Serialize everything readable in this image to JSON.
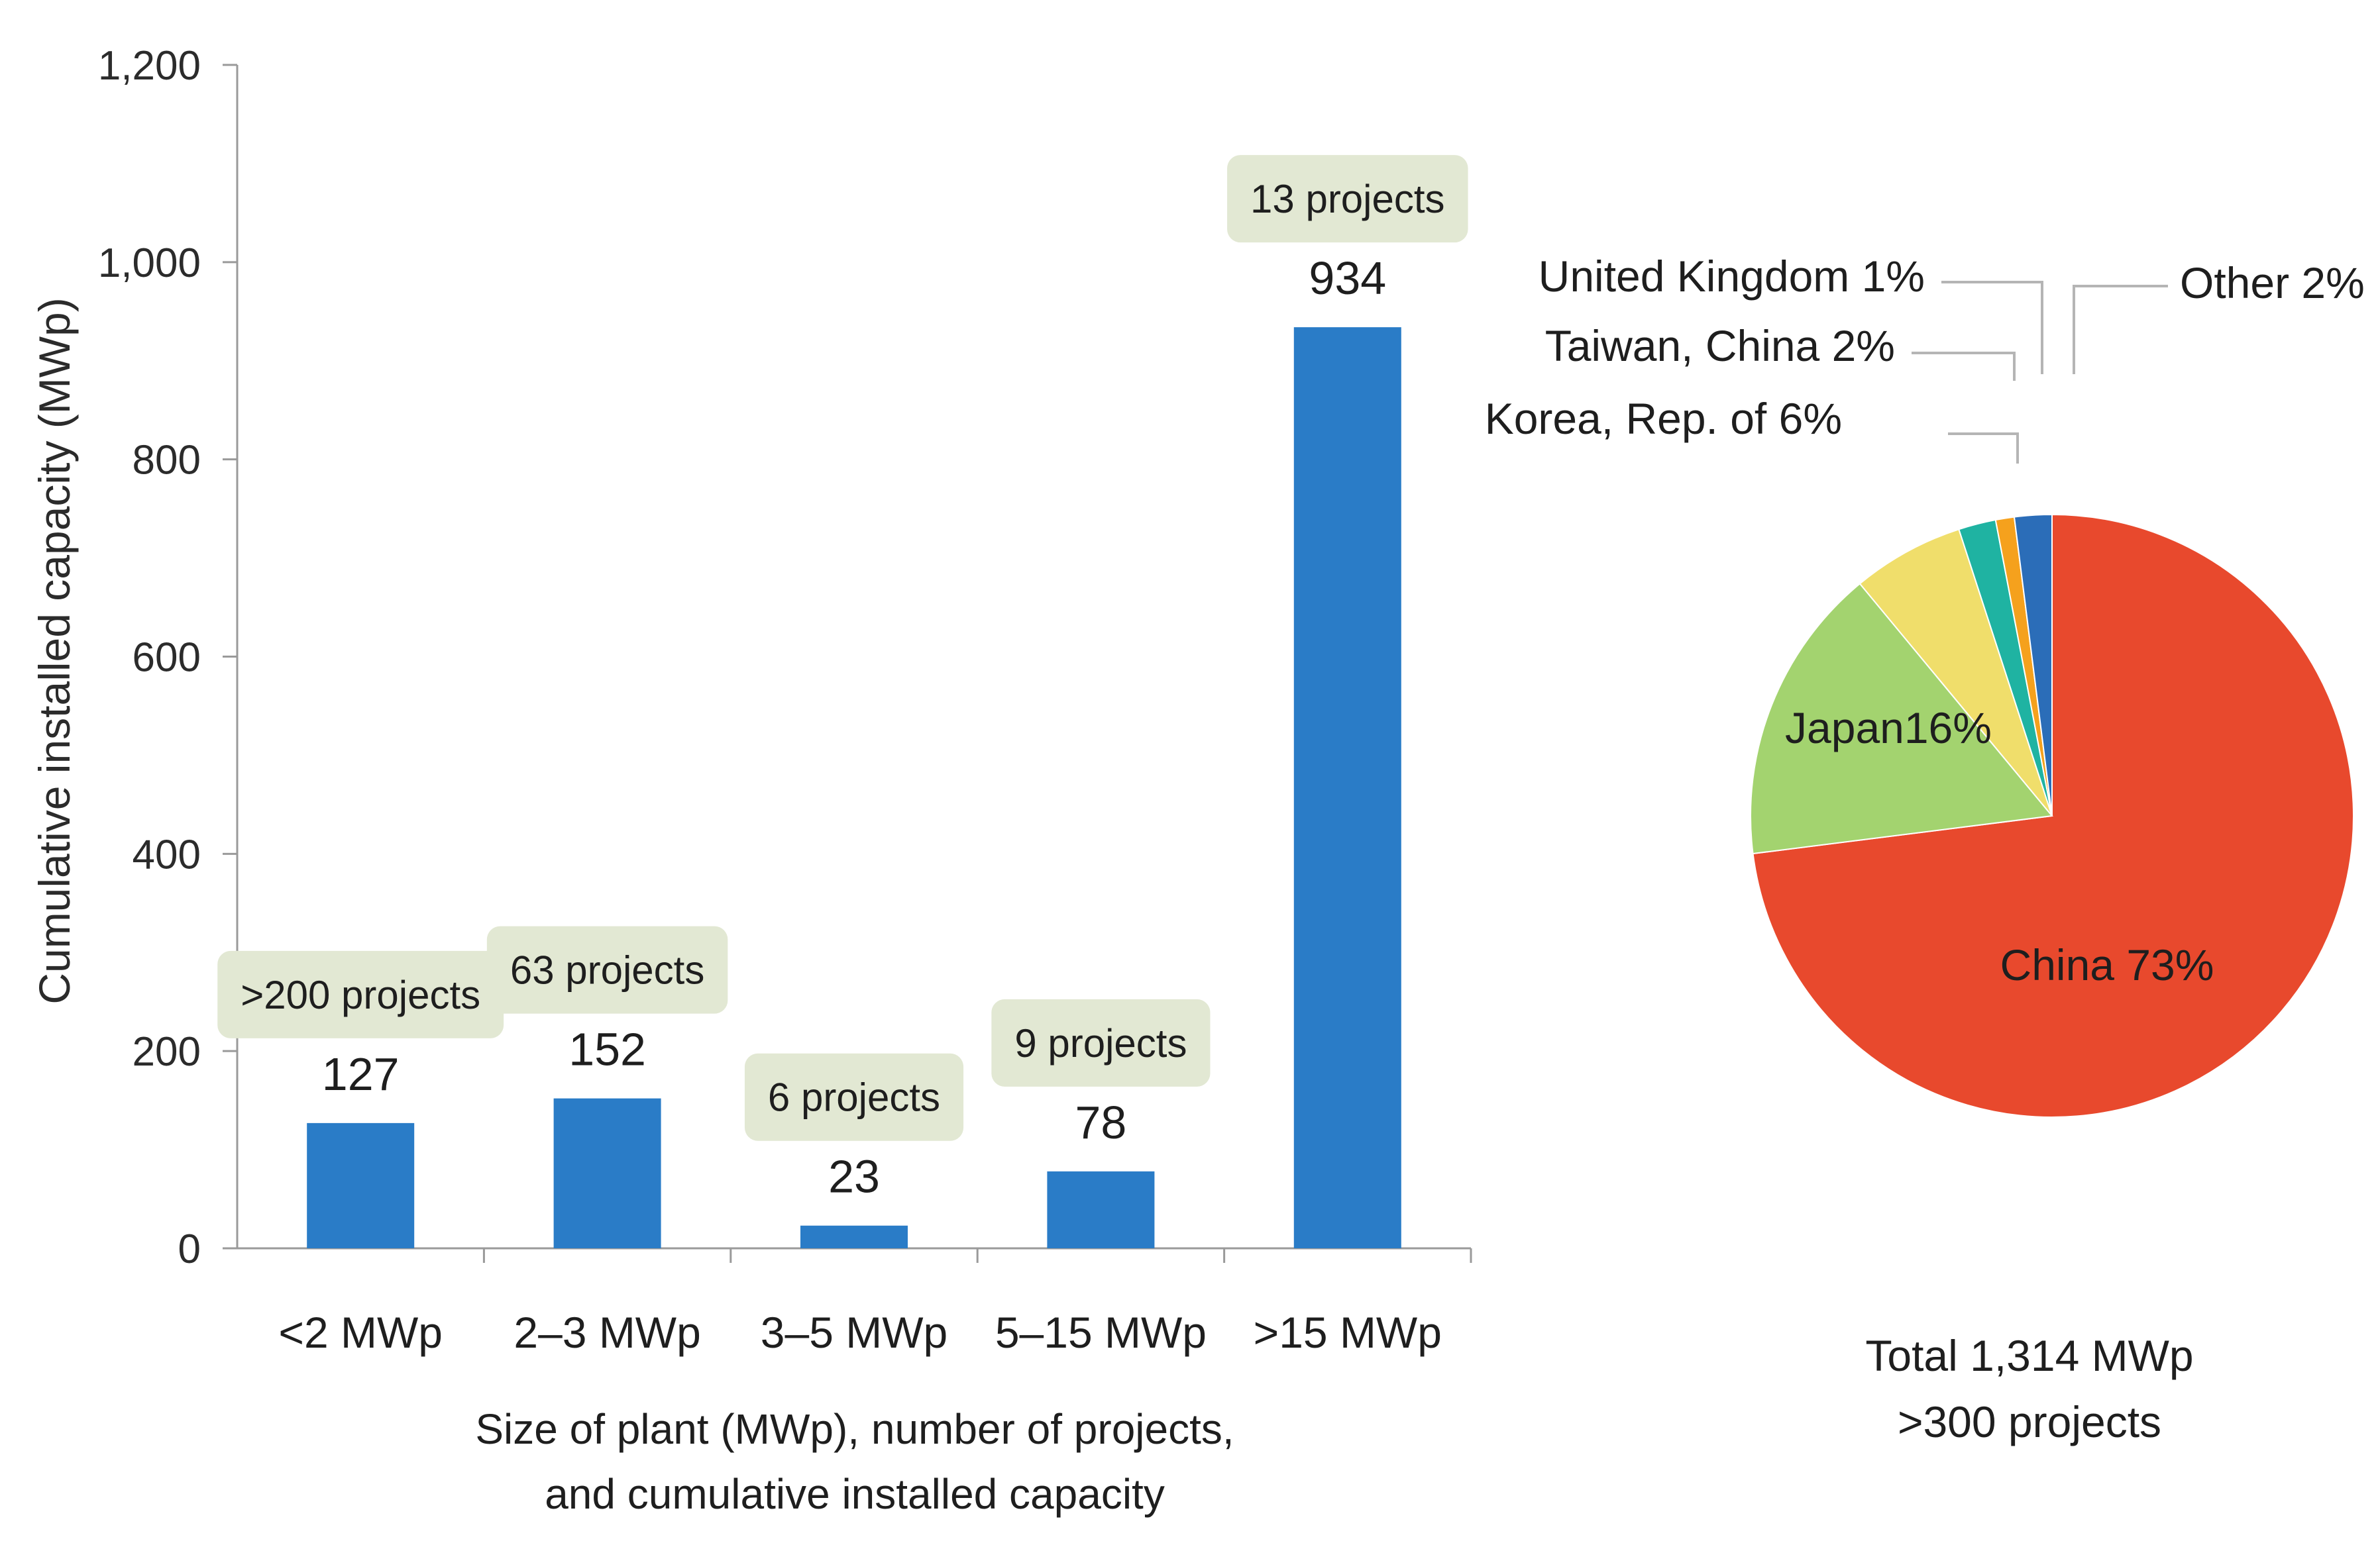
{
  "chart_data": [
    {
      "type": "bar",
      "xlabel_lines": [
        "Size of plant (MWp), number of projects,",
        "and cumulative installed capacity"
      ],
      "ylabel": "Cumulative installed capacity (MWp)",
      "ylim": [
        0,
        1200
      ],
      "yticks": [
        0,
        200,
        400,
        600,
        800,
        1000,
        1200
      ],
      "ytick_labels": [
        "0",
        "200",
        "400",
        "600",
        "800",
        "1,000",
        "1,200"
      ],
      "categories": [
        "<2 MWp",
        "2–3 MWp",
        "3–5 MWp",
        "5–15 MWp",
        ">15 MWp"
      ],
      "values": [
        127,
        152,
        23,
        78,
        934
      ],
      "value_labels": [
        "127",
        "152",
        "23",
        "78",
        "934"
      ],
      "project_labels": [
        ">200 projects",
        "63 projects",
        "6 projects",
        "9 projects",
        "13 projects"
      ],
      "bar_color": "#2A7CC7",
      "label_box_color": "#E2E8D3"
    },
    {
      "type": "pie",
      "slices": [
        {
          "name": "China",
          "label": "China 73%",
          "value": 73,
          "color": "#E8492D",
          "label_color": "#ffffff"
        },
        {
          "name": "Japan",
          "label": "Japan16%",
          "value": 16,
          "color": "#A3D36F",
          "label_color": "#1e1e1e"
        },
        {
          "name": "Korea",
          "label": "Korea, Rep. of 6%",
          "value": 6,
          "color": "#F0DE6B",
          "label_color": "#1e1e1e"
        },
        {
          "name": "Taiwan",
          "label": "Taiwan, China 2%",
          "value": 2,
          "color": "#1FB3A2",
          "label_color": "#1e1e1e"
        },
        {
          "name": "UK",
          "label": "United Kingdom 1%",
          "value": 1,
          "color": "#F5A11D",
          "label_color": "#1e1e1e"
        },
        {
          "name": "Other",
          "label": "Other 2%",
          "value": 2,
          "color": "#2B6DB8",
          "label_color": "#1e1e1e"
        }
      ],
      "total_lines": [
        "Total 1,314 MWp",
        ">300 projects"
      ]
    }
  ]
}
